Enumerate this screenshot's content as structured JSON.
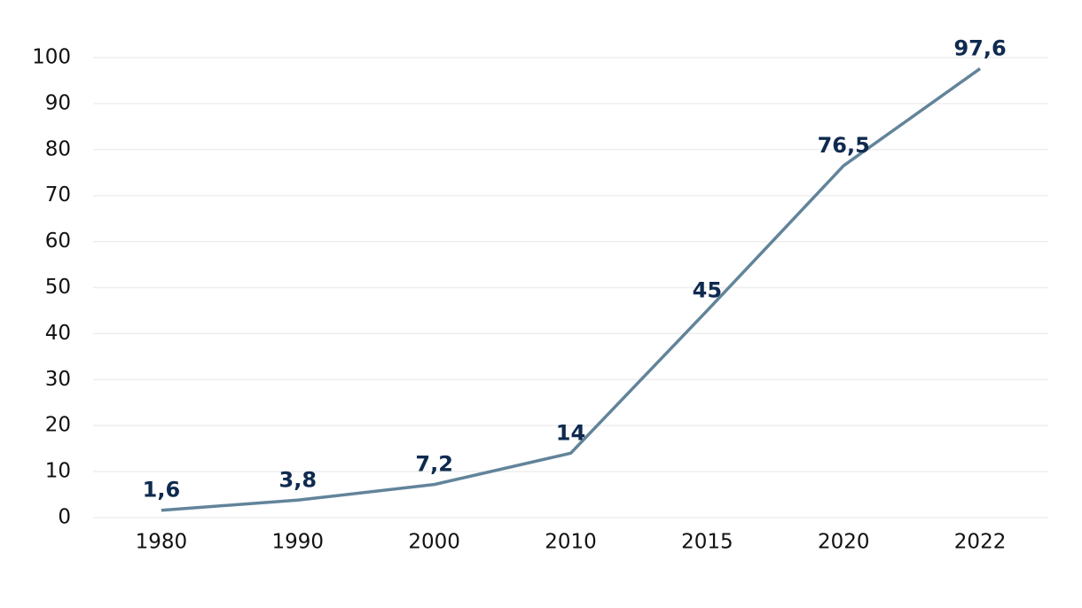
{
  "chart_data": {
    "type": "line",
    "categories": [
      "1980",
      "1990",
      "2000",
      "2010",
      "2015",
      "2020",
      "2022"
    ],
    "series": [
      {
        "color": "#62849a",
        "values": [
          1.6,
          3.8,
          7.2,
          14,
          45,
          76.5,
          97.6
        ],
        "value_labels": [
          "1,6",
          "3,8",
          "7,2",
          "14",
          "45",
          "76,5",
          "97,6"
        ]
      }
    ],
    "ylim": [
      0,
      100
    ],
    "yticks": [
      0,
      10,
      20,
      30,
      40,
      50,
      60,
      70,
      80,
      90,
      100
    ],
    "grid": true
  }
}
